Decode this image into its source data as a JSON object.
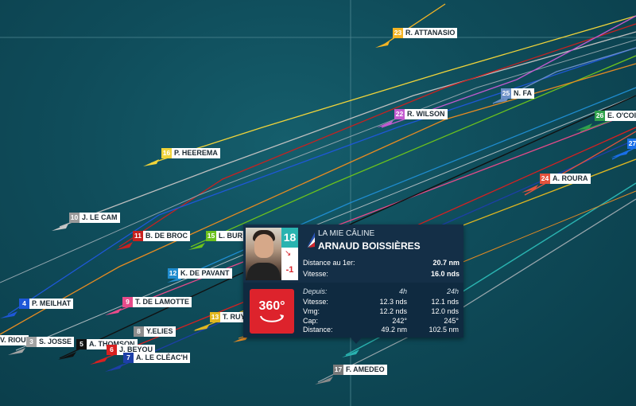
{
  "map": {
    "background": "#0f4c5a"
  },
  "boats": [
    {
      "rank": "23",
      "name": "R. ATTANASIO",
      "color": "#f3b425"
    },
    {
      "rank": "25",
      "name": "N. FA",
      "color": "#6b8fc7"
    },
    {
      "rank": "22",
      "name": "R. WILSON",
      "color": "#c35bd0"
    },
    {
      "rank": "26",
      "name": "E. O'COI",
      "color": "#2fa24c"
    },
    {
      "rank": "27",
      "name": "",
      "color": "#1a6fe8"
    },
    {
      "rank": "16",
      "name": "P. HEEREMA",
      "color": "#f0d43a"
    },
    {
      "rank": "24",
      "name": "A. ROURA",
      "color": "#e2533d"
    },
    {
      "rank": "10",
      "name": "J. LE CAM",
      "color": "#9a9a9a"
    },
    {
      "rank": "11",
      "name": "B. DE BROC",
      "color": "#c8211f"
    },
    {
      "rank": "15",
      "name": "L. BUR",
      "color": "#6cc21d"
    },
    {
      "rank": "12",
      "name": "K. DE PAVANT",
      "color": "#1f8ccf"
    },
    {
      "rank": "9",
      "name": "T. DE LAMOTTE",
      "color": "#e84b8a"
    },
    {
      "rank": "4",
      "name": "P. MEILHAT",
      "color": "#1e58d8"
    },
    {
      "rank": "8",
      "name": "Y.ELIES",
      "color": "#8d8d8d"
    },
    {
      "rank": "13",
      "name": "T. RUY",
      "color": "#e0b720"
    },
    {
      "rank": "",
      "name": "V. RIOU",
      "color": "#ffffff"
    },
    {
      "rank": "3",
      "name": "S. JOSSE",
      "color": "#a3a3a3"
    },
    {
      "rank": "5",
      "name": "A. THOMSON",
      "color": "#111111"
    },
    {
      "rank": "6",
      "name": "J. BEYOU",
      "color": "#d82020"
    },
    {
      "rank": "7",
      "name": "A. LE CLÉAC'H",
      "color": "#1d3fa8"
    },
    {
      "rank": "17",
      "name": "F. AMEDEO",
      "color": "#7a7a7a"
    }
  ],
  "popup": {
    "rank": "18",
    "delta": "-1",
    "trend_icon": "arrow-down-right-icon",
    "boat_name": "LA MIE CÂLINE",
    "skipper": "ARNAUD BOISSIÈRES",
    "distance_label": "Distance au 1er:",
    "distance_value": "20.7 nm",
    "speed_label": "Vitesse:",
    "speed_value": "16.0 nds",
    "button_360": "360°",
    "table": {
      "since_label": "Depuis:",
      "col1": "4h",
      "col2": "24h",
      "rows": [
        {
          "label": "Vitesse:",
          "v4h": "12.3 nds",
          "v24h": "12.1 nds"
        },
        {
          "label": "Vmg:",
          "v4h": "12.2 nds",
          "v24h": "12.0 nds"
        },
        {
          "label": "Cap:",
          "v4h": "242°",
          "v24h": "245°"
        },
        {
          "label": "Distance:",
          "v4h": "49.2 nm",
          "v24h": "102.5 nm"
        }
      ]
    }
  }
}
